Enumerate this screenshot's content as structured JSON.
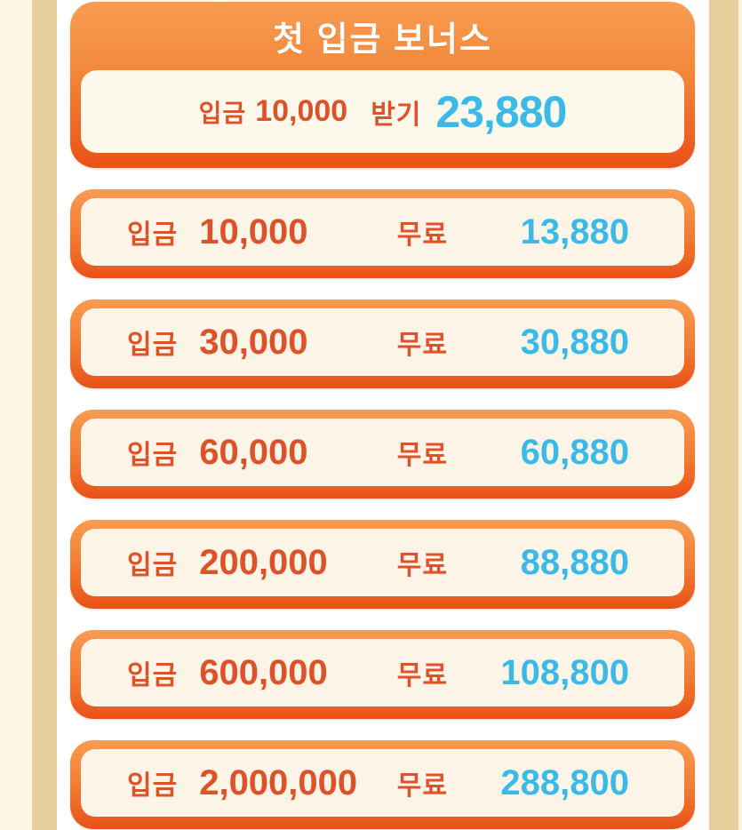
{
  "header": {
    "title": "첫 입금 보너스",
    "offer": {
      "deposit_label": "입금",
      "deposit_amount": "10,000",
      "action_label": "받기",
      "bonus": "23,880"
    }
  },
  "tiers": [
    {
      "deposit_label": "입금",
      "deposit": "10,000",
      "free_label": "무료",
      "bonus": "13,880"
    },
    {
      "deposit_label": "입금",
      "deposit": "30,000",
      "free_label": "무료",
      "bonus": "30,880"
    },
    {
      "deposit_label": "입금",
      "deposit": "60,000",
      "free_label": "무료",
      "bonus": "60,880"
    },
    {
      "deposit_label": "입금",
      "deposit": "200,000",
      "free_label": "무료",
      "bonus": "88,880"
    },
    {
      "deposit_label": "입금",
      "deposit": "600,000",
      "free_label": "무료",
      "bonus": "108,800"
    },
    {
      "deposit_label": "입금",
      "deposit": "2,000,000",
      "free_label": "무료",
      "bonus": "288,800"
    }
  ],
  "colors": {
    "accent_orange_text": "#DE5229",
    "accent_cyan_text": "#3BBAE8",
    "card_gradient_top": "#F89C52",
    "card_gradient_bottom": "#EA5117",
    "card_inner_bg": "#FCF5E7",
    "side_tan": "#E4CE99",
    "side_cream": "#FDF6E2",
    "title_text": "#FFFFFF"
  }
}
